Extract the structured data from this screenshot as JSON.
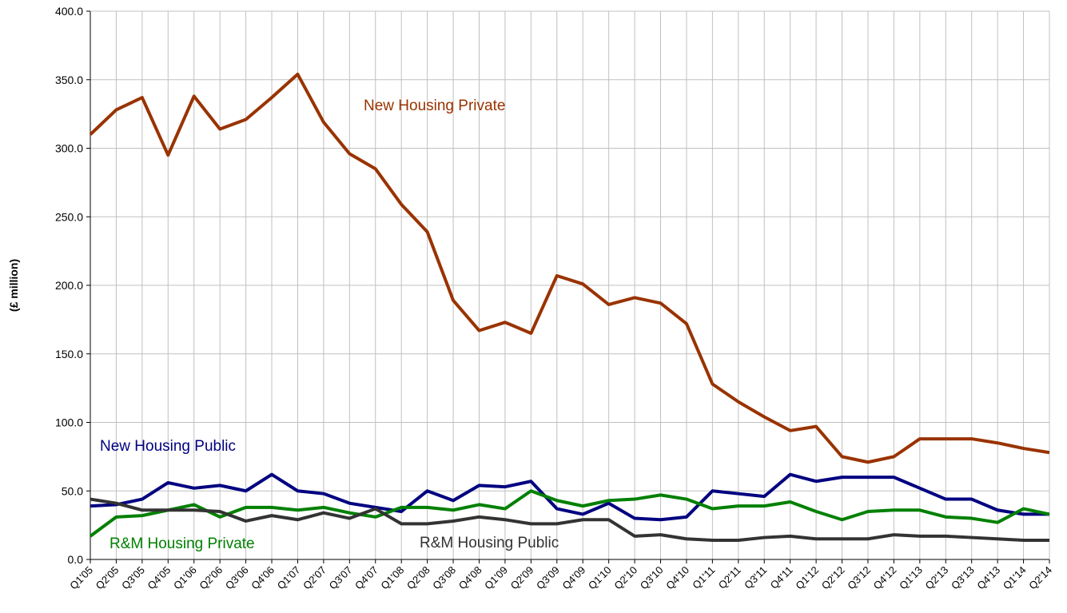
{
  "chart_data": {
    "type": "line",
    "y_label": "(£ million)",
    "categories": [
      "Q1'05",
      "Q2'05",
      "Q3'05",
      "Q4'05",
      "Q1'06",
      "Q2'06",
      "Q3'06",
      "Q4'06",
      "Q1'07",
      "Q2'07",
      "Q3'07",
      "Q4'07",
      "Q1'08",
      "Q2'08",
      "Q3'08",
      "Q4'08",
      "Q1'09",
      "Q2'09",
      "Q3'09",
      "Q4'09",
      "Q1'10",
      "Q2'10",
      "Q3'10",
      "Q4'10",
      "Q1'11",
      "Q2'11",
      "Q3'11",
      "Q4'11",
      "Q1'12",
      "Q2'12",
      "Q3'12",
      "Q4'12",
      "Q1'13",
      "Q2'13",
      "Q3'13",
      "Q4'13",
      "Q1'14",
      "Q2'14"
    ],
    "series": [
      {
        "name": "New Housing Private",
        "color": "#993300",
        "values": [
          310,
          328,
          337,
          295,
          338,
          314,
          321,
          337,
          354,
          319,
          296,
          285,
          259,
          239,
          189,
          167,
          173,
          165,
          207,
          201,
          186,
          191,
          187,
          172,
          128,
          115,
          104,
          94,
          97,
          75,
          71,
          75,
          88,
          88,
          88,
          85,
          81,
          78
        ]
      },
      {
        "name": "New Housing Public",
        "color": "#000080",
        "values": [
          39,
          40,
          44,
          56,
          52,
          54,
          50,
          62,
          50,
          48,
          41,
          38,
          35,
          50,
          43,
          54,
          53,
          57,
          37,
          33,
          41,
          30,
          29,
          31,
          50,
          48,
          46,
          62,
          57,
          60,
          60,
          60,
          52,
          44,
          44,
          36,
          33,
          33
        ]
      },
      {
        "name": "R&M Housing Private",
        "color": "#008000",
        "values": [
          17,
          31,
          32,
          36,
          40,
          31,
          38,
          38,
          36,
          38,
          34,
          31,
          38,
          38,
          36,
          40,
          37,
          50,
          43,
          39,
          43,
          44,
          47,
          44,
          37,
          39,
          39,
          42,
          35,
          29,
          35,
          36,
          36,
          31,
          30,
          27,
          37,
          33
        ]
      },
      {
        "name": "R&M Housing Public",
        "color": "#333333",
        "values": [
          44,
          41,
          36,
          36,
          36,
          35,
          28,
          32,
          29,
          34,
          30,
          37,
          26,
          26,
          28,
          31,
          29,
          26,
          26,
          29,
          29,
          17,
          18,
          15,
          14,
          14,
          16,
          17,
          15,
          15,
          15,
          18,
          17,
          17,
          16,
          15,
          14,
          14
        ]
      }
    ],
    "ylim": [
      0,
      400
    ],
    "yticks": [
      {
        "value": 0,
        "label": "0.0"
      },
      {
        "value": 50,
        "label": "50.0"
      },
      {
        "value": 100,
        "label": "100.0"
      },
      {
        "value": 150,
        "label": "150.0"
      },
      {
        "value": 200,
        "label": "200.0"
      },
      {
        "value": 250,
        "label": "250.0"
      },
      {
        "value": 300,
        "label": "300.0"
      },
      {
        "value": 350,
        "label": "350.0"
      },
      {
        "value": 400,
        "label": "400.0"
      }
    ],
    "grid": true
  }
}
